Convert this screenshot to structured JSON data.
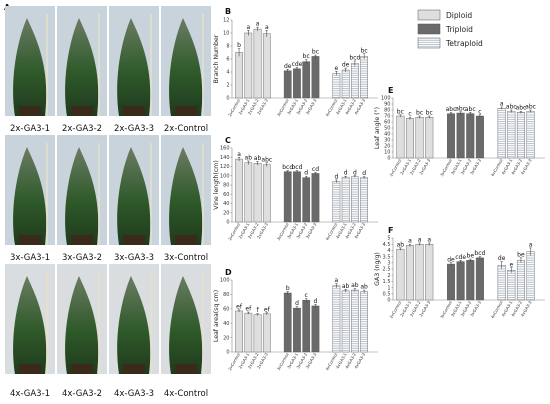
{
  "figure": {
    "photos": {
      "panel_letter": "A",
      "rows": [
        [
          "2x-GA3-1",
          "2x-GA3-2",
          "2x-GA3-3",
          "2x-Control"
        ],
        [
          "3x-GA3-1",
          "3x-GA3-2",
          "3x-GA3-3",
          "3x-Control"
        ],
        [
          "4x-GA3-1",
          "4x-GA3-2",
          "4x-GA3-3",
          "4x-Control"
        ]
      ]
    },
    "legend": [
      {
        "name": "Diploid",
        "fill": "#dedede",
        "pattern": "solid"
      },
      {
        "name": "Triploid",
        "fill": "#6a6a6a",
        "pattern": "solid"
      },
      {
        "name": "Tetraploid",
        "fill": "#ffffff",
        "pattern": "stripes"
      }
    ],
    "colors": {
      "diploid": "#dedede",
      "triploid": "#6a6a6a",
      "tetraploid_stripe": "#9aa7b8"
    }
  },
  "chart_data": [
    {
      "panel": "B",
      "type": "bar",
      "ylabel": "Branch Number",
      "ylim": [
        0,
        12
      ],
      "yticks": [
        0,
        2,
        4,
        6,
        8,
        10,
        12
      ],
      "groups": [
        {
          "ploidy": "diploid",
          "categories": [
            "2xControl",
            "2xGA3-1",
            "2xGA3-2",
            "2xGA3-3"
          ],
          "values": [
            7.0,
            10.0,
            10.6,
            9.9
          ],
          "errors": [
            0.6,
            0.4,
            0.3,
            0.5
          ],
          "sig": [
            "b",
            "a",
            "a",
            "a"
          ]
        },
        {
          "ploidy": "triploid",
          "categories": [
            "3xControl",
            "3xGA3-1",
            "3xGA3-2",
            "3xGA3-3"
          ],
          "values": [
            4.2,
            4.5,
            5.6,
            6.4
          ],
          "errors": [
            0.2,
            0.2,
            0.3,
            0.2
          ],
          "sig": [
            "de",
            "cde",
            "bc",
            "bc"
          ]
        },
        {
          "ploidy": "tetraploid",
          "categories": [
            "4xControl",
            "4xGA3-1",
            "4xGA3-2",
            "4xGA3-3"
          ],
          "values": [
            3.8,
            4.3,
            5.3,
            6.4
          ],
          "errors": [
            0.3,
            0.3,
            0.4,
            0.4
          ],
          "sig": [
            "e",
            "de",
            "bcd",
            "bc"
          ]
        }
      ]
    },
    {
      "panel": "C",
      "type": "bar",
      "ylabel": "Vine length(cm)",
      "ylim": [
        0,
        160
      ],
      "yticks": [
        0,
        20,
        40,
        60,
        80,
        100,
        120,
        140,
        160
      ],
      "groups": [
        {
          "ploidy": "diploid",
          "categories": [
            "2xControl",
            "2xGA3-1",
            "2xGA3-2",
            "2xGA3-3"
          ],
          "values": [
            136,
            128,
            127,
            124
          ],
          "errors": [
            4,
            4,
            4,
            4
          ],
          "sig": [
            "a",
            "ab",
            "ab",
            "abc"
          ]
        },
        {
          "ploidy": "triploid",
          "categories": [
            "3xControl",
            "3xGA3-1",
            "3xGA3-2",
            "3xGA3-3"
          ],
          "values": [
            109,
            109,
            96,
            105
          ],
          "errors": [
            2,
            2,
            3,
            2
          ],
          "sig": [
            "bcd",
            "bcd",
            "d",
            "cd"
          ]
        },
        {
          "ploidy": "tetraploid",
          "categories": [
            "4xControl",
            "4xGA3-1",
            "4xGA3-2",
            "4xGA3-3"
          ],
          "values": [
            88,
            97,
            98,
            96
          ],
          "errors": [
            3,
            2,
            2,
            2
          ],
          "sig": [
            "d",
            "d",
            "d",
            "d"
          ]
        }
      ]
    },
    {
      "panel": "D",
      "type": "bar",
      "ylabel": "Leaf area(sq cm)",
      "ylim": [
        0,
        100
      ],
      "yticks": [
        0,
        20,
        40,
        60,
        80,
        100
      ],
      "groups": [
        {
          "ploidy": "diploid",
          "categories": [
            "2xControl",
            "2xGA3-1",
            "2xGA3-2",
            "2xGA3-3"
          ],
          "values": [
            57,
            54,
            52,
            53
          ],
          "errors": [
            1.5,
            1.5,
            1.5,
            1.5
          ],
          "sig": [
            "ef",
            "ef",
            "f",
            "ef"
          ]
        },
        {
          "ploidy": "triploid",
          "categories": [
            "3xControl",
            "3xGA3-1",
            "3xGA3-2",
            "3xGA3-3"
          ],
          "values": [
            82,
            61,
            72,
            64
          ],
          "errors": [
            2,
            2,
            2,
            2
          ],
          "sig": [
            "b",
            "d",
            "c",
            "d"
          ]
        },
        {
          "ploidy": "tetraploid",
          "categories": [
            "4xControl",
            "4xGA3-1",
            "4xGA3-2",
            "4xGA3-3"
          ],
          "values": [
            92,
            85,
            86,
            84
          ],
          "errors": [
            3,
            2,
            2,
            2
          ],
          "sig": [
            "a",
            "ab",
            "ab",
            "ab"
          ]
        }
      ]
    },
    {
      "panel": "E",
      "type": "bar",
      "ylabel": "Leaf angle (°)",
      "ylim": [
        0,
        100
      ],
      "yticks": [
        0,
        10,
        20,
        30,
        40,
        50,
        60,
        70,
        80,
        90,
        100
      ],
      "groups": [
        {
          "ploidy": "diploid",
          "categories": [
            "2xControl",
            "2xGA3-1",
            "2xGA3-2",
            "2xGA3-3"
          ],
          "values": [
            70,
            66,
            68,
            68
          ],
          "errors": [
            2,
            2,
            2,
            2
          ],
          "sig": [
            "bc",
            "c",
            "bc",
            "bc"
          ]
        },
        {
          "ploidy": "triploid",
          "categories": [
            "3xControl",
            "3xGA3-1",
            "3xGA3-2",
            "3xGA3-3"
          ],
          "values": [
            74,
            75,
            74,
            70
          ],
          "errors": [
            2,
            2,
            2,
            2
          ],
          "sig": [
            "abc",
            "abc",
            "abc",
            "c"
          ]
        },
        {
          "ploidy": "tetraploid",
          "categories": [
            "4xControl",
            "4xGA3-1",
            "4xGA3-2",
            "4xGA3-3"
          ],
          "values": [
            83,
            78,
            76,
            78
          ],
          "errors": [
            2,
            2,
            2,
            2
          ],
          "sig": [
            "a",
            "abc",
            "abc",
            "abc"
          ]
        }
      ]
    },
    {
      "panel": "F",
      "type": "bar",
      "ylabel": "GA3 (ng/g)",
      "ylim": [
        0,
        5
      ],
      "yticks": [
        0,
        0.5,
        1,
        1.5,
        2,
        2.5,
        3,
        3.5,
        4,
        4.5,
        5
      ],
      "groups": [
        {
          "ploidy": "diploid",
          "categories": [
            "2xControl",
            "2xGA3-1",
            "2xGA3-2",
            "2xGA3-3"
          ],
          "values": [
            4.1,
            4.4,
            4.5,
            4.5
          ],
          "errors": [
            0.1,
            0.1,
            0.1,
            0.1
          ],
          "sig": [
            "ab",
            "a",
            "a",
            "a"
          ]
        },
        {
          "ploidy": "triploid",
          "categories": [
            "3xControl",
            "3xGA3-1",
            "3xGA3-2",
            "3xGA3-3"
          ],
          "values": [
            2.9,
            3.1,
            3.2,
            3.4
          ],
          "errors": [
            0.1,
            0.1,
            0.1,
            0.1
          ],
          "sig": [
            "de",
            "cde",
            "be",
            "bcd"
          ]
        },
        {
          "ploidy": "tetraploid",
          "categories": [
            "4xControl",
            "4xGA3-1",
            "4xGA3-2",
            "4xGA3-3"
          ],
          "values": [
            2.8,
            2.4,
            3.2,
            3.9
          ],
          "errors": [
            0.3,
            0.2,
            0.2,
            0.3
          ],
          "sig": [
            "de",
            "e",
            "be",
            "a"
          ]
        }
      ]
    }
  ]
}
